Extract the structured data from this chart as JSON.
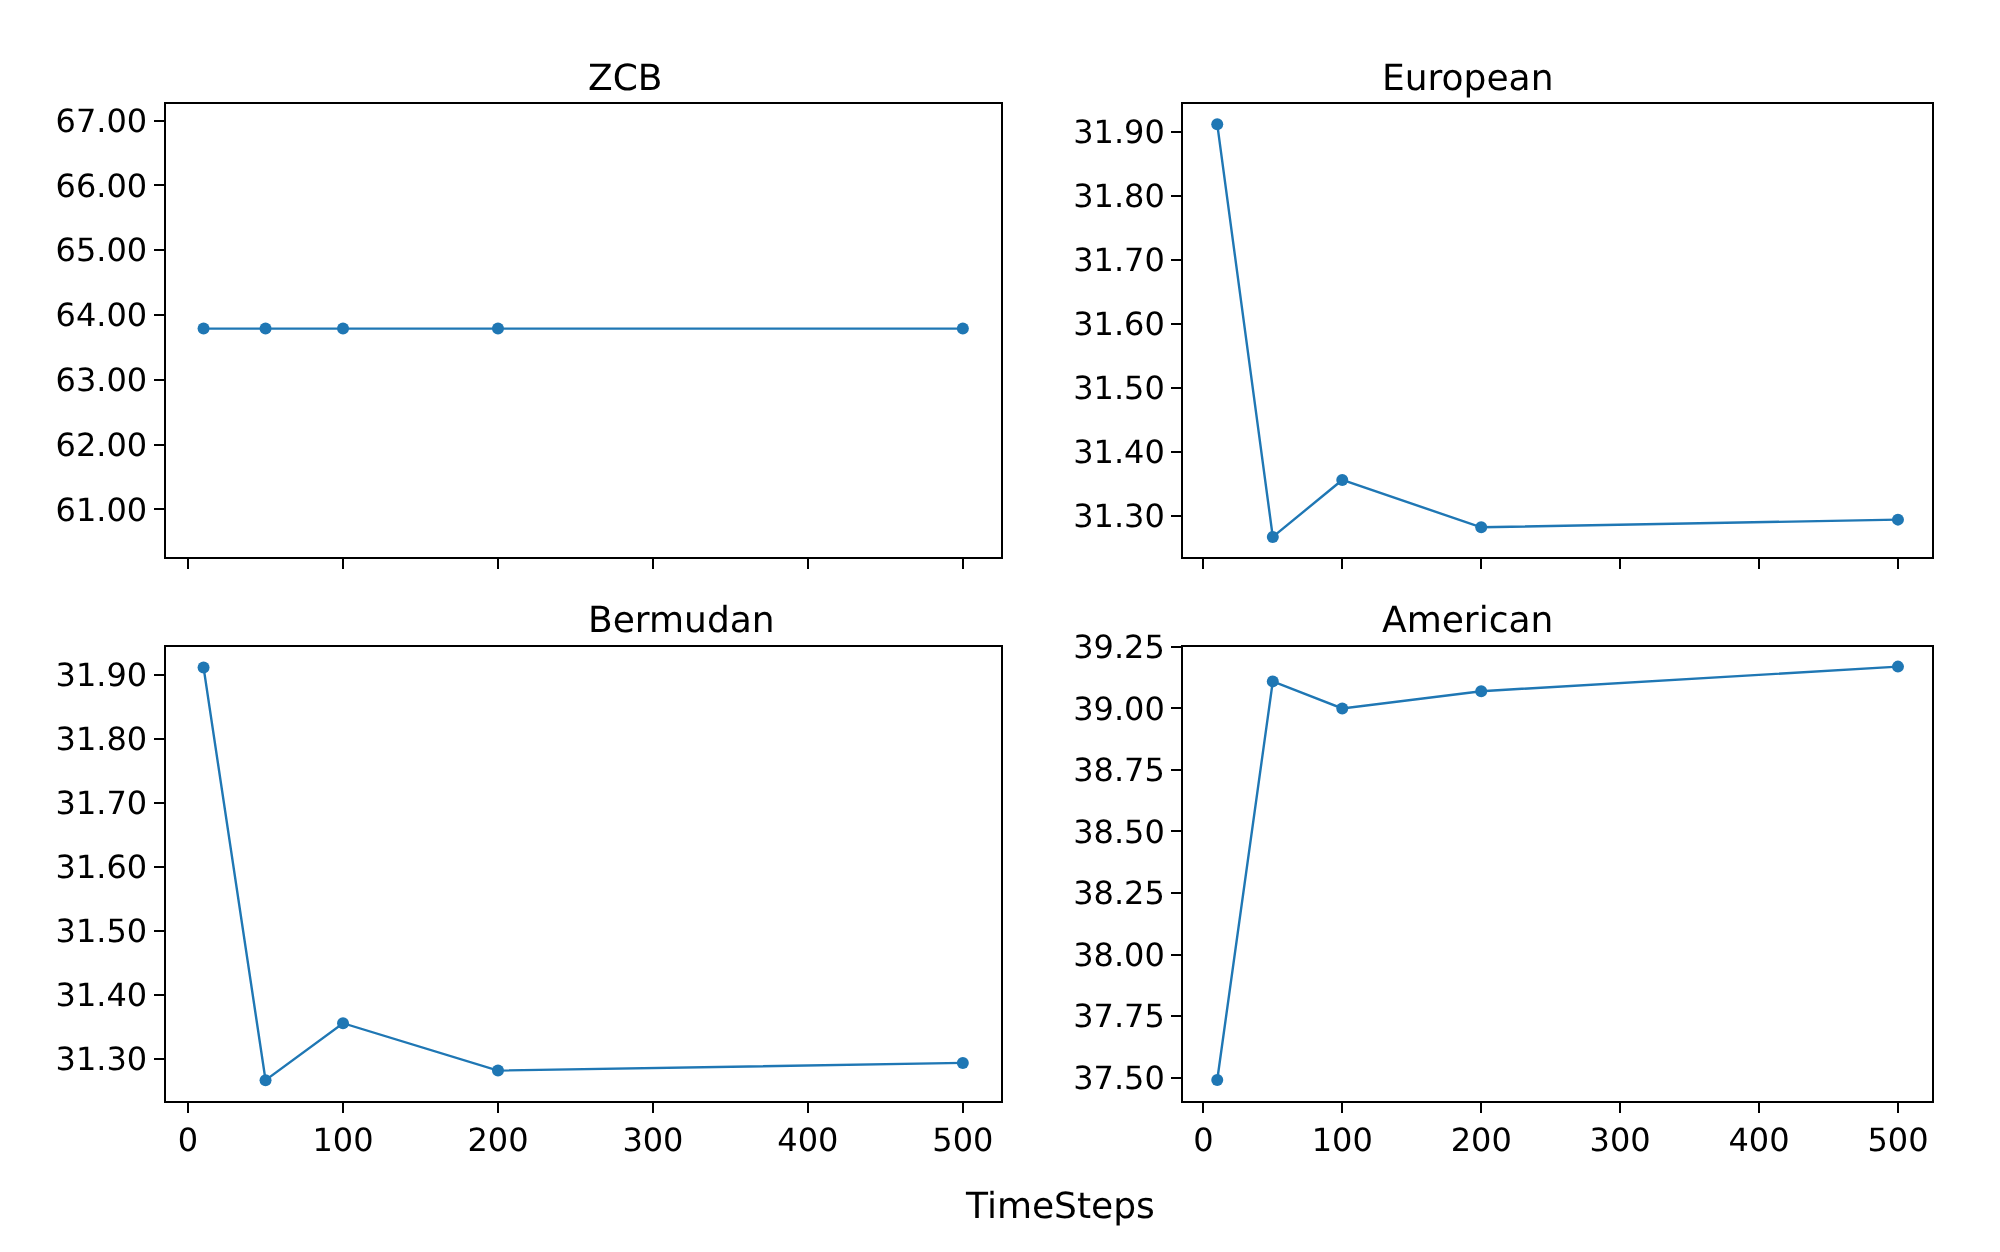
{
  "chart_data": [
    {
      "type": "line",
      "title": "ZCB",
      "x": [
        10,
        50,
        100,
        200,
        500
      ],
      "values": [
        63.79,
        63.79,
        63.79,
        63.79,
        63.79
      ],
      "color": "#1f77b4",
      "marker": "circle",
      "xlim": [
        -14.5,
        524.5
      ],
      "xticks": [
        {
          "value": 0,
          "label": null
        },
        {
          "value": 100,
          "label": null
        },
        {
          "value": 200,
          "label": null
        },
        {
          "value": 300,
          "label": null
        },
        {
          "value": 400,
          "label": null
        },
        {
          "value": 500,
          "label": null
        }
      ],
      "ylim": [
        60.26,
        67.26
      ],
      "yticks": [
        {
          "value": 61,
          "label": "61.00"
        },
        {
          "value": 62,
          "label": "62.00"
        },
        {
          "value": 63,
          "label": "63.00"
        },
        {
          "value": 64,
          "label": "64.00"
        },
        {
          "value": 65,
          "label": "65.00"
        },
        {
          "value": 66,
          "label": "66.00"
        },
        {
          "value": 67,
          "label": "67.00"
        }
      ],
      "tick_labels": "y"
    },
    {
      "type": "line",
      "title": "European",
      "x": [
        10,
        50,
        100,
        200,
        500
      ],
      "values": [
        31.912,
        31.267,
        31.356,
        31.282,
        31.294
      ],
      "color": "#1f77b4",
      "marker": "circle",
      "xlim": [
        -14.5,
        524.5
      ],
      "xticks": [
        {
          "value": 0,
          "label": null
        },
        {
          "value": 100,
          "label": null
        },
        {
          "value": 200,
          "label": null
        },
        {
          "value": 300,
          "label": null
        },
        {
          "value": 400,
          "label": null
        },
        {
          "value": 500,
          "label": null
        }
      ],
      "ylim": [
        31.235,
        31.944
      ],
      "yticks": [
        {
          "value": 31.3,
          "label": "31.30"
        },
        {
          "value": 31.4,
          "label": "31.40"
        },
        {
          "value": 31.5,
          "label": "31.50"
        },
        {
          "value": 31.6,
          "label": "31.60"
        },
        {
          "value": 31.7,
          "label": "31.70"
        },
        {
          "value": 31.8,
          "label": "31.80"
        },
        {
          "value": 31.9,
          "label": "31.90"
        }
      ],
      "tick_labels": "y"
    },
    {
      "type": "line",
      "title": "Bermudan",
      "xlabel": "TimeSteps",
      "x": [
        10,
        50,
        100,
        200,
        500
      ],
      "values": [
        31.912,
        31.267,
        31.356,
        31.282,
        31.294
      ],
      "color": "#1f77b4",
      "marker": "circle",
      "xlim": [
        -14.5,
        524.5
      ],
      "xticks": [
        0,
        100,
        200,
        300,
        400,
        500
      ],
      "ylim": [
        31.235,
        31.944
      ],
      "yticks": [
        {
          "value": 31.3,
          "label": "31.30"
        },
        {
          "value": 31.4,
          "label": "31.40"
        },
        {
          "value": 31.5,
          "label": "31.50"
        },
        {
          "value": 31.6,
          "label": "31.60"
        },
        {
          "value": 31.7,
          "label": "31.70"
        },
        {
          "value": 31.8,
          "label": "31.80"
        },
        {
          "value": 31.9,
          "label": "31.90"
        }
      ]
    },
    {
      "type": "line",
      "title": "American",
      "x": [
        10,
        50,
        100,
        200,
        500
      ],
      "values": [
        37.49,
        39.11,
        39.0,
        39.07,
        39.17
      ],
      "color": "#1f77b4",
      "marker": "circle",
      "xlim": [
        -14.5,
        524.5
      ],
      "xticks": [
        0,
        100,
        200,
        300,
        400,
        500
      ],
      "ylim": [
        37.406,
        39.25
      ],
      "yticks": [
        {
          "value": 37.5,
          "label": "37.50"
        },
        {
          "value": 37.75,
          "label": "37.75"
        },
        {
          "value": 38,
          "label": "38.00"
        },
        {
          "value": 38.25,
          "label": "38.25"
        },
        {
          "value": 38.5,
          "label": "38.50"
        },
        {
          "value": 38.75,
          "label": "38.75"
        },
        {
          "value": 39,
          "label": "39.00"
        },
        {
          "value": 39.25,
          "label": "39.25"
        }
      ]
    }
  ]
}
